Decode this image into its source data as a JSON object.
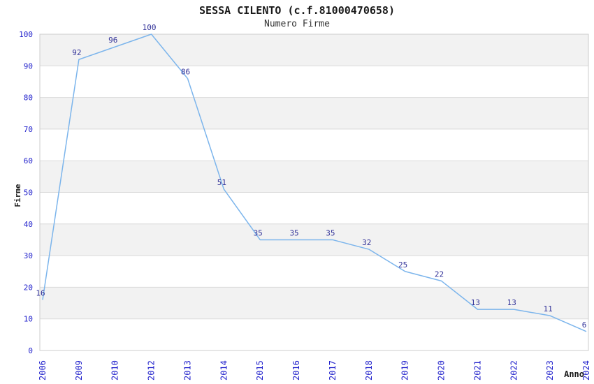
{
  "chart_data": {
    "type": "line",
    "title": "SESSA CILENTO (c.f.81000470658)",
    "subtitle": "Numero Firme",
    "xlabel": "Anno",
    "ylabel": "Firme",
    "categories": [
      "2006",
      "2009",
      "2010",
      "2012",
      "2013",
      "2014",
      "2015",
      "2016",
      "2017",
      "2018",
      "2019",
      "2020",
      "2021",
      "2022",
      "2023",
      "2024"
    ],
    "values": [
      16,
      92,
      96,
      100,
      86,
      51,
      35,
      35,
      35,
      32,
      25,
      22,
      13,
      13,
      11,
      6
    ],
    "ylim": [
      0,
      100
    ],
    "ytick_step": 10,
    "data_labels": true,
    "legend": "none",
    "grid": "horizontal-gridlines-with-alternating-bands",
    "x_tick_rotation": -90,
    "colors": {
      "line": "#7cb5ec",
      "band": "#f2f2f2",
      "gridline": "#d9d9d9",
      "border": "#cccccc",
      "tick_label": "#2222cc",
      "data_label": "#333399",
      "title": "#1a1a1a"
    }
  }
}
